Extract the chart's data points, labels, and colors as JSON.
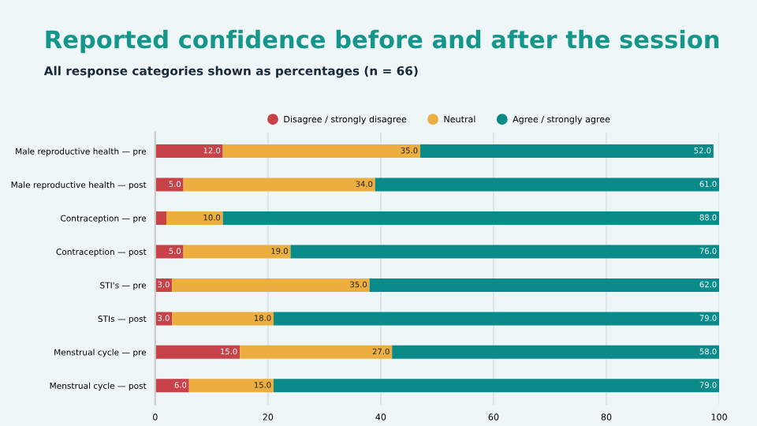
{
  "chart_data": {
    "type": "bar",
    "orientation": "horizontal",
    "stacked": true,
    "title": "Reported confidence before and after the session",
    "subtitle": "All response categories shown as percentages (n = 66)",
    "categories": [
      "Male reproductive health — pre",
      "Male reproductive health — post",
      "Contraception — pre",
      "Contraception — post",
      "STI's — pre",
      "STIs — post",
      "Menstrual cycle — pre",
      "Menstrual cycle — post"
    ],
    "series": [
      {
        "name": "Disagree / strongly disagree",
        "color": "#c8424a",
        "values": [
          12,
          5,
          2,
          5,
          3,
          3,
          15,
          6
        ],
        "value_labels": [
          "12.0",
          "5.0",
          null,
          "5.0",
          "3.0",
          "3.0",
          "15.0",
          "6.0"
        ]
      },
      {
        "name": "Neutral",
        "color": "#ecae3f",
        "values": [
          35,
          34,
          10,
          19,
          35,
          18,
          27,
          15
        ],
        "value_labels": [
          "35.0",
          "34.0",
          "10.0",
          "19.0",
          "35.0",
          "18.0",
          "27.0",
          "15.0"
        ]
      },
      {
        "name": "Agree / strongly agree",
        "color": "#0b8a8a",
        "values": [
          52,
          61,
          88,
          76,
          62,
          79,
          58,
          79
        ],
        "value_labels": [
          "52.0",
          "61.0",
          "88.0",
          "76.0",
          "62.0",
          "79.0",
          "58.0",
          "79.0"
        ]
      }
    ],
    "xlim": [
      0,
      100
    ],
    "xticks": [
      0,
      20,
      40,
      60,
      80,
      100
    ],
    "grid": "x",
    "legend": "top"
  }
}
